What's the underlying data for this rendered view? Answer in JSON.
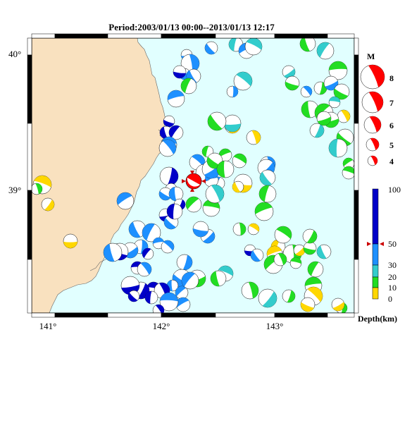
{
  "title": "Period:2003/01/13 00:00--2013/01/13 12:17",
  "axes": {
    "lon_ticks": [
      "141°",
      "142°",
      "143°"
    ],
    "lat_ticks": [
      "40°",
      "39°"
    ]
  },
  "magnitude_legend": {
    "header": "M",
    "items": [
      "8",
      "7",
      "6",
      "5",
      "4"
    ]
  },
  "depth_legend": {
    "ticks": [
      "100",
      "50",
      "30",
      "20",
      "10",
      "0"
    ],
    "unit_label": "Depth(km)"
  },
  "colors": {
    "land": "#f9e1bf",
    "sea": "#e1ffff",
    "depth_0_10": "#ffd700",
    "depth_10_20": "#22dd22",
    "depth_20_30": "#33cccc",
    "depth_30_50": "#1e90ff",
    "depth_50_100": "#0000c8",
    "highlight": "#ff0000"
  },
  "events": [
    {
      "lon": 141.75,
      "lat": 38.6,
      "mag": 5.2,
      "depth": 40
    }
  ]
}
